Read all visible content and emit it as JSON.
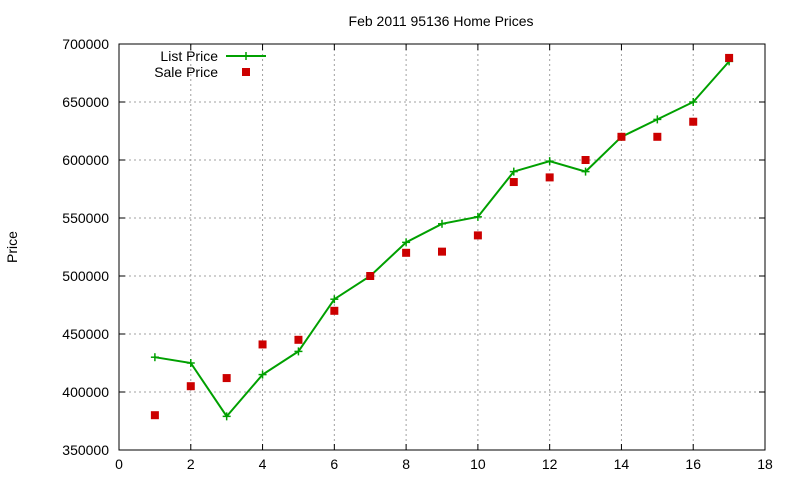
{
  "chart_data": {
    "type": "line",
    "title": "Feb 2011 95136 Home Prices",
    "xlabel": "",
    "ylabel": "Price",
    "xlim": [
      0,
      18
    ],
    "ylim": [
      350000,
      700000
    ],
    "xticks": [
      "0",
      "2",
      "4",
      "6",
      "8",
      "10",
      "12",
      "14",
      "16",
      "18"
    ],
    "yticks": [
      "350000",
      "400000",
      "450000",
      "500000",
      "550000",
      "600000",
      "650000",
      "700000"
    ],
    "grid": true,
    "legend_position": "top-left",
    "series": [
      {
        "name": "List Price",
        "style": "line+cross",
        "color": "#00a000",
        "x": [
          1,
          2,
          3,
          4,
          5,
          6,
          7,
          8,
          9,
          10,
          11,
          12,
          13,
          14,
          15,
          16,
          17
        ],
        "y": [
          430000,
          425000,
          379000,
          415000,
          435000,
          480000,
          500000,
          529000,
          545000,
          551000,
          590000,
          599000,
          590000,
          620000,
          635000,
          650000,
          685000
        ]
      },
      {
        "name": "Sale Price",
        "style": "square",
        "color": "#cc0000",
        "x": [
          1,
          2,
          3,
          4,
          5,
          6,
          7,
          8,
          9,
          10,
          11,
          12,
          13,
          14,
          15,
          16,
          17
        ],
        "y": [
          380000,
          405000,
          412000,
          441000,
          445000,
          470000,
          500000,
          520000,
          521000,
          535000,
          581000,
          585000,
          600000,
          620000,
          620000,
          633000,
          688000
        ]
      }
    ]
  }
}
